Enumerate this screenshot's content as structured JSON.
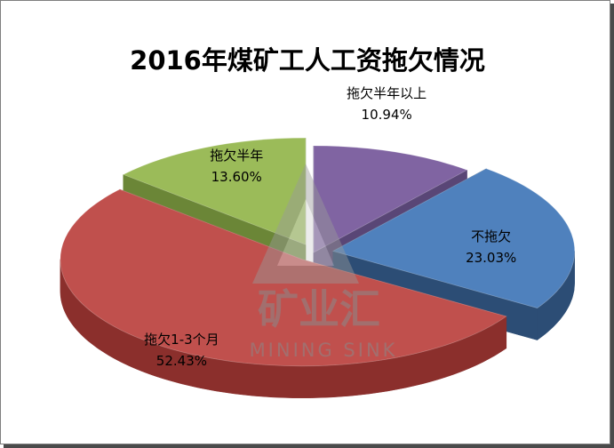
{
  "chart_data": {
    "type": "pie",
    "title": "2016年煤矿工人工资拖欠情况",
    "slices": [
      {
        "label": "拖欠半年以上",
        "value": 10.94,
        "value_label": "10.94%",
        "color": "#8064a2",
        "side": "#594676",
        "exploded": false
      },
      {
        "label": "不拖欠",
        "value": 23.03,
        "value_label": "23.03%",
        "color": "#4f81bd",
        "side": "#2c4d75",
        "exploded": true
      },
      {
        "label": "拖欠1-3个月",
        "value": 52.43,
        "value_label": "52.43%",
        "color": "#c0504d",
        "side": "#8b2f2c",
        "exploded": true
      },
      {
        "label": "拖欠半年",
        "value": 13.6,
        "value_label": "13.60%",
        "color": "#9bbb59",
        "side": "#6b8637",
        "exploded": true
      }
    ],
    "style": "3d-exploded-pie"
  },
  "watermark": {
    "text_cn": "矿业汇",
    "text_en": "MINING SINK"
  }
}
